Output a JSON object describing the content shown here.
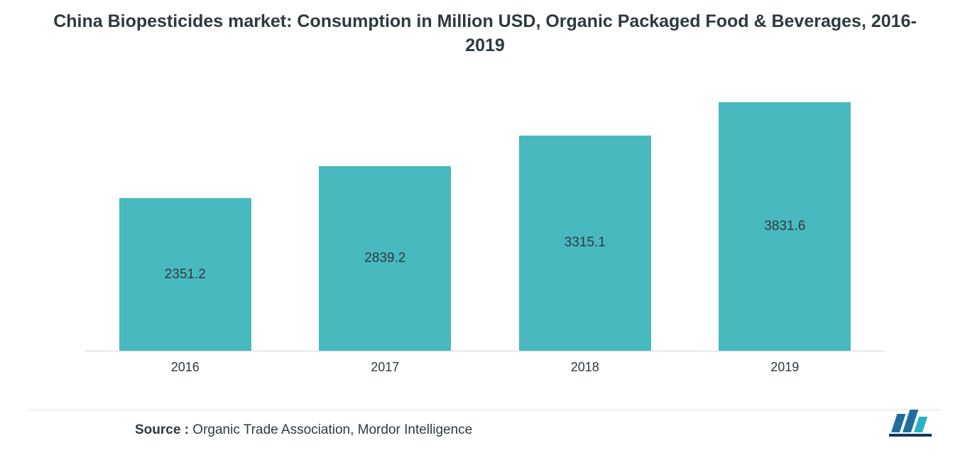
{
  "chart": {
    "type": "bar",
    "title": "China Biopesticides market: Consumption in Million USD, Organic Packaged Food & Beverages, 2016-2019",
    "title_fontsize": 25,
    "title_fontweight": 600,
    "title_color": "#2d3a3f",
    "background_color": "#ffffff",
    "categories": [
      "2016",
      "2017",
      "2018",
      "2019"
    ],
    "values": [
      2351.2,
      2839.2,
      3315.1,
      3831.6
    ],
    "value_labels": [
      "2351.2",
      "2839.2",
      "3315.1",
      "3831.6"
    ],
    "bar_color": "#48b9bf",
    "bar_width_ratio": 0.66,
    "ymin": 0,
    "ymax": 4200,
    "value_label_fontsize": 19,
    "value_label_color": "#2d3a3f",
    "x_label_fontsize": 18,
    "x_label_color": "#2d3a3f",
    "axis_line_color": "#d0d6d9",
    "footer_rule_color": "#e2e6e8"
  },
  "source": {
    "label": "Source :",
    "text": " Organic Trade Association, Mordor Intelligence",
    "fontsize": 19,
    "color": "#2d3a3f"
  },
  "logo": {
    "name": "mordor-intelligence-logo",
    "bar_colors": [
      "#1f6f9e",
      "#1f6f9e",
      "#26b3c5"
    ],
    "underline_color": "#16365a"
  }
}
